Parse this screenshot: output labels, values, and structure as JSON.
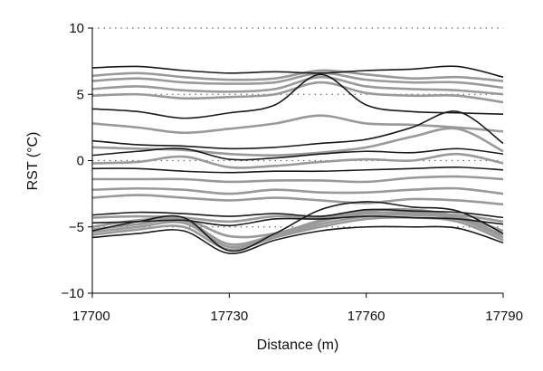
{
  "chart_data": {
    "type": "line",
    "title": "",
    "xlabel": "Distance (m)",
    "ylabel": "RST (°C)",
    "xlim": [
      17700,
      17790
    ],
    "ylim": [
      -10,
      10
    ],
    "x_ticks": [
      17700,
      17730,
      17760,
      17790
    ],
    "y_ticks": [
      -10,
      -5,
      0,
      5,
      10
    ],
    "dotted_gridlines_y": [
      10,
      5,
      0,
      -5
    ],
    "legend": "none",
    "x": [
      17700,
      17710,
      17720,
      17730,
      17740,
      17750,
      17760,
      17770,
      17780,
      17790
    ],
    "series": [
      {
        "color": "#1a1a1a",
        "values": [
          7.0,
          7.1,
          6.8,
          6.6,
          6.7,
          6.6,
          6.8,
          6.9,
          7.1,
          6.3
        ]
      },
      {
        "color": "#999999",
        "values": [
          6.4,
          6.6,
          6.3,
          6.1,
          6.2,
          6.8,
          6.5,
          6.2,
          6.3,
          6.0
        ]
      },
      {
        "color": "#999999",
        "values": [
          6.0,
          6.2,
          5.9,
          5.8,
          5.9,
          6.6,
          6.1,
          5.9,
          5.9,
          5.5
        ]
      },
      {
        "color": "#999999",
        "values": [
          5.4,
          5.6,
          5.3,
          5.2,
          5.4,
          6.3,
          5.6,
          5.4,
          5.3,
          5.0
        ]
      },
      {
        "color": "#999999",
        "values": [
          4.9,
          5.0,
          4.7,
          4.8,
          5.0,
          5.9,
          5.1,
          4.9,
          4.9,
          4.4
        ]
      },
      {
        "color": "#1a1a1a",
        "values": [
          3.9,
          3.7,
          3.2,
          3.6,
          4.2,
          6.5,
          4.2,
          3.7,
          3.6,
          3.5
        ]
      },
      {
        "color": "#999999",
        "values": [
          2.8,
          2.5,
          2.1,
          2.4,
          2.8,
          3.4,
          2.8,
          2.7,
          2.5,
          2.2
        ]
      },
      {
        "color": "#1a1a1a",
        "values": [
          1.5,
          1.2,
          1.1,
          0.9,
          1.0,
          1.3,
          1.6,
          2.5,
          3.7,
          1.3
        ]
      },
      {
        "color": "#999999",
        "values": [
          1.0,
          0.9,
          0.8,
          0.5,
          0.4,
          0.6,
          1.0,
          1.8,
          2.4,
          0.7
        ]
      },
      {
        "color": "#1a1a1a",
        "values": [
          0.4,
          0.7,
          0.9,
          0.1,
          0.2,
          0.5,
          0.7,
          0.6,
          0.9,
          0.5
        ]
      },
      {
        "color": "#999999",
        "values": [
          -0.2,
          -0.1,
          0.3,
          -0.5,
          -0.4,
          -0.1,
          0.1,
          0.0,
          0.5,
          -0.2
        ]
      },
      {
        "color": "#1a1a1a",
        "values": [
          -0.6,
          -0.6,
          -0.8,
          -0.9,
          -0.8,
          -0.8,
          -0.7,
          -0.6,
          -0.5,
          -0.7
        ]
      },
      {
        "color": "#999999",
        "values": [
          -1.4,
          -1.4,
          -1.4,
          -1.6,
          -1.5,
          -1.5,
          -1.6,
          -1.3,
          -1.2,
          -1.4
        ]
      },
      {
        "color": "#999999",
        "values": [
          -2.2,
          -2.1,
          -2.2,
          -2.5,
          -2.2,
          -2.4,
          -2.4,
          -2.2,
          -2.1,
          -2.5
        ]
      },
      {
        "color": "#999999",
        "values": [
          -2.8,
          -2.6,
          -2.8,
          -3.0,
          -2.8,
          -3.0,
          -3.2,
          -2.9,
          -3.0,
          -3.3
        ]
      },
      {
        "color": "#1a1a1a",
        "values": [
          -4.1,
          -3.9,
          -4.0,
          -4.2,
          -4.0,
          -4.2,
          -3.7,
          -3.8,
          -3.9,
          -4.3
        ]
      },
      {
        "color": "#999999",
        "values": [
          -4.3,
          -4.2,
          -4.3,
          -4.6,
          -4.2,
          -4.3,
          -3.9,
          -4.0,
          -4.1,
          -4.6
        ]
      },
      {
        "color": "#1a1a1a",
        "values": [
          -4.7,
          -4.6,
          -4.5,
          -4.9,
          -4.4,
          -4.4,
          -4.2,
          -4.3,
          -4.4,
          -4.8
        ]
      },
      {
        "color": "#999999",
        "values": [
          -5.0,
          -4.5,
          -4.4,
          -5.7,
          -5.5,
          -4.5,
          -3.8,
          -3.7,
          -4.2,
          -5.3
        ]
      },
      {
        "color": "#1a1a1a",
        "values": [
          -5.3,
          -4.6,
          -4.3,
          -6.8,
          -5.5,
          -3.7,
          -3.1,
          -3.5,
          -3.8,
          -5.5
        ]
      },
      {
        "color": "#999999",
        "values": [
          -5.2,
          -4.8,
          -4.5,
          -6.3,
          -5.6,
          -4.6,
          -4.0,
          -3.9,
          -4.3,
          -5.6
        ]
      },
      {
        "color": "#999999",
        "values": [
          -5.4,
          -5.0,
          -4.7,
          -6.5,
          -5.7,
          -4.8,
          -4.2,
          -4.1,
          -4.4,
          -5.8
        ]
      },
      {
        "color": "#999999",
        "values": [
          -5.6,
          -5.2,
          -5.0,
          -6.7,
          -5.8,
          -5.0,
          -4.4,
          -4.3,
          -4.6,
          -6.0
        ]
      },
      {
        "color": "#1a1a1a",
        "values": [
          -5.8,
          -5.5,
          -5.3,
          -7.0,
          -6.0,
          -5.3,
          -5.0,
          -5.0,
          -5.1,
          -6.2
        ]
      }
    ]
  }
}
